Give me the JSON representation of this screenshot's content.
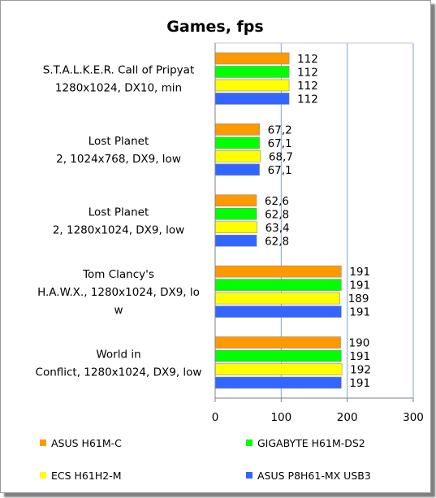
{
  "chart_data": {
    "type": "bar",
    "orientation": "horizontal",
    "title": "Games, fps",
    "xlim": [
      0,
      300
    ],
    "xticks": [
      0,
      100,
      200,
      300
    ],
    "grid": true,
    "legend_position": "bottom",
    "categories": [
      [
        "S.T.A.L.K.E.R. Call of Pripyat",
        "1280x1024, DX10, min"
      ],
      [
        "Lost Planet",
        "2, 1024x768, DX9, low"
      ],
      [
        "Lost Planet",
        "2, 1280x1024, DX9, low"
      ],
      [
        "Tom Clancy's",
        "H.A.W.X., 1280x1024, DX9, lo",
        "w"
      ],
      [
        "World in",
        "Conflict, 1280x1024, DX9, low"
      ]
    ],
    "series": [
      {
        "name": "ASUS H61M-C",
        "color": "#ff9900",
        "values": [
          112,
          67.2,
          62.6,
          191,
          190
        ],
        "labels": [
          "112",
          "67,2",
          "62,6",
          "191",
          "190"
        ]
      },
      {
        "name": "GIGABYTE H61M-DS2",
        "color": "#00ff00",
        "values": [
          112,
          67.1,
          62.8,
          191,
          191
        ],
        "labels": [
          "112",
          "67,1",
          "62,8",
          "191",
          "191"
        ]
      },
      {
        "name": "ECS H61H2-M",
        "color": "#ffff00",
        "values": [
          112,
          68.7,
          63.4,
          189,
          192
        ],
        "labels": [
          "112",
          "68,7",
          "63,4",
          "189",
          "192"
        ]
      },
      {
        "name": "ASUS P8H61-MX USB3",
        "color": "#3366ff",
        "values": [
          112,
          67.1,
          62.8,
          191,
          191
        ],
        "labels": [
          "112",
          "67,1",
          "62,8",
          "191",
          "191"
        ]
      }
    ]
  }
}
